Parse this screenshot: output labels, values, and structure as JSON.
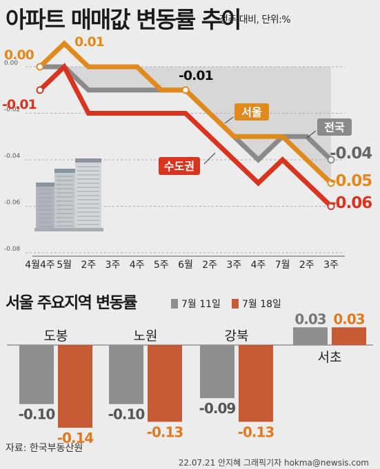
{
  "title": "아파트 매매값 변동률 추이",
  "unit_note": "전주 대비, 단위:%",
  "bar_title": "서울 주요지역 변동률",
  "source": "자료: 한국부동산원",
  "credit": "22.07.21 안지혜 그래픽기자 hokma@newsis.com",
  "colors": {
    "seoul": "#e08a1e",
    "national": "#8a8a8a",
    "capital": "#d9341f",
    "fill": "#d7d7d7",
    "bar_a": "#8e8e8e",
    "bar_b": "#c65a35"
  },
  "chart_data": [
    {
      "type": "line",
      "title": "아파트 매매값 변동률 추이",
      "categories": [
        "4월4주",
        "5월",
        "2주",
        "3주",
        "4주",
        "5주",
        "6월",
        "2주",
        "3주",
        "4주",
        "7월",
        "2주",
        "3주"
      ],
      "yticks": [
        "0.00",
        "-0.02",
        "-0.04",
        "-0.06",
        "-0.08"
      ],
      "ylim": [
        -0.08,
        0.0
      ],
      "series": [
        {
          "name": "서울",
          "key": "seoul",
          "values": [
            0.0,
            0.01,
            0.0,
            0.0,
            0.0,
            -0.01,
            -0.01,
            -0.02,
            -0.03,
            -0.03,
            -0.03,
            -0.04,
            -0.05
          ]
        },
        {
          "name": "전국",
          "key": "national",
          "values": [
            0.0,
            0.0,
            -0.01,
            -0.01,
            -0.01,
            -0.01,
            -0.01,
            -0.02,
            -0.03,
            -0.04,
            -0.03,
            -0.03,
            -0.04
          ]
        },
        {
          "name": "수도권",
          "key": "capital",
          "values": [
            -0.01,
            0.0,
            -0.02,
            -0.02,
            -0.02,
            -0.02,
            -0.02,
            -0.03,
            -0.04,
            -0.05,
            -0.04,
            -0.05,
            -0.06
          ]
        }
      ],
      "labels": [
        {
          "text": "0.00",
          "series": "seoul"
        },
        {
          "text": "0.01",
          "series": "seoul"
        },
        {
          "text": "-0.01",
          "series": "capital"
        },
        {
          "text": "-0.01",
          "series": "national"
        },
        {
          "text": "-0.04",
          "series": "national"
        },
        {
          "text": "-0.05",
          "series": "seoul"
        },
        {
          "text": "-0.06",
          "series": "capital"
        }
      ]
    },
    {
      "type": "bar",
      "title": "서울 주요지역 변동률",
      "categories": [
        "도봉",
        "노원",
        "강북",
        "서초"
      ],
      "series": [
        {
          "name": "7월 11일",
          "values": [
            -0.1,
            -0.1,
            -0.09,
            0.03
          ]
        },
        {
          "name": "7월 18일",
          "values": [
            -0.14,
            -0.13,
            -0.13,
            0.03
          ]
        }
      ],
      "value_labels": [
        [
          "-0.10",
          "-0.14"
        ],
        [
          "-0.10",
          "-0.13"
        ],
        [
          "-0.09",
          "-0.13"
        ],
        [
          "0.03",
          "0.03"
        ]
      ]
    }
  ]
}
